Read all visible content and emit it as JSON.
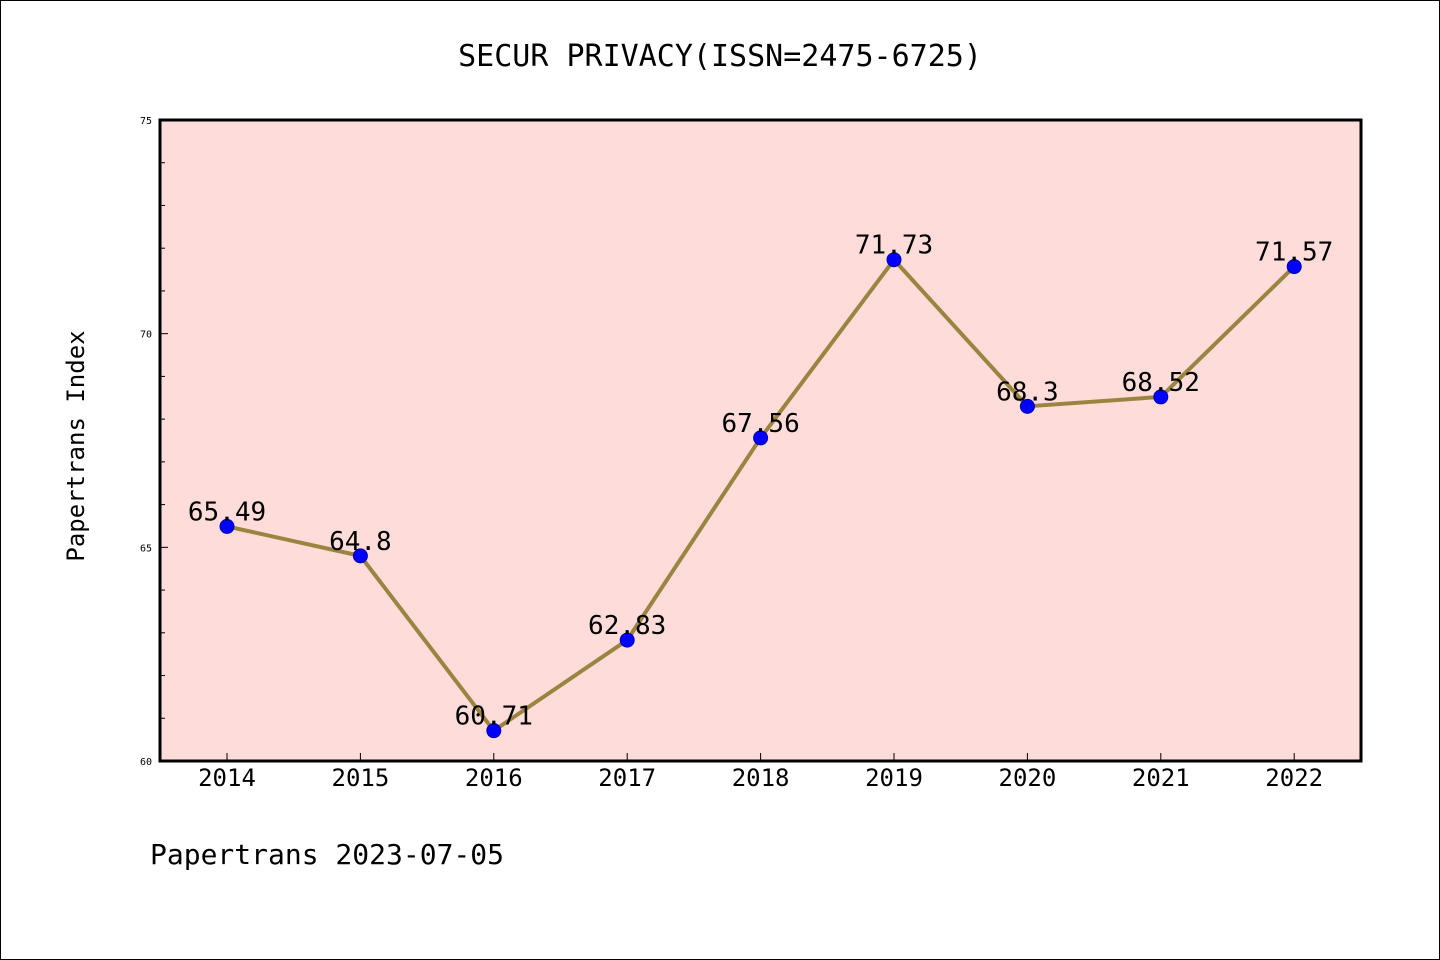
{
  "chart_data": {
    "type": "line",
    "title": "SECUR PRIVACY(ISSN=2475-6725)",
    "ylabel": "Papertrans Index",
    "xlabel": "",
    "categories": [
      "2014",
      "2015",
      "2016",
      "2017",
      "2018",
      "2019",
      "2020",
      "2021",
      "2022"
    ],
    "series": [
      {
        "values": [
          65.49,
          64.8,
          60.71,
          62.83,
          67.56,
          71.73,
          68.3,
          68.52,
          71.57
        ],
        "labels": [
          "65.49",
          "64.8",
          "60.71",
          "62.83",
          "67.56",
          "71.73",
          "68.3",
          "68.52",
          "71.57"
        ]
      }
    ],
    "ylim": [
      60,
      75
    ],
    "yticks": [
      "60",
      "65",
      "70",
      "75"
    ],
    "grid": false,
    "colors": {
      "line": "#9B8340",
      "marker": "#0000FF",
      "plot_background": "#FDDCDA"
    }
  },
  "footer": "Papertrans 2023-07-05"
}
